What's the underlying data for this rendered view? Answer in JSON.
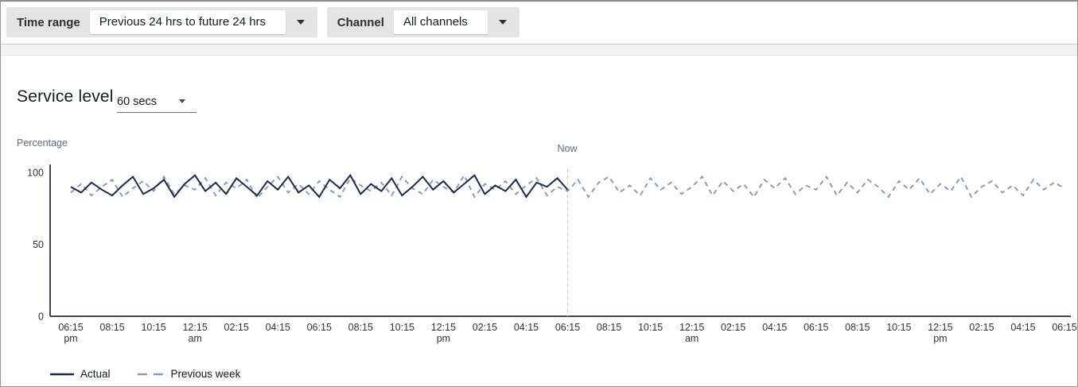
{
  "filters": {
    "time_range": {
      "label": "Time range",
      "value": "Previous 24 hrs to future 24 hrs"
    },
    "channel": {
      "label": "Channel",
      "value": "All channels"
    }
  },
  "panel": {
    "title": "Service level",
    "threshold_value": "60 secs",
    "y_axis_title": "Percentage",
    "now_label": "Now"
  },
  "legend": {
    "actual": "Actual",
    "previous": "Previous week"
  },
  "chart_data": {
    "type": "line",
    "title": "Service level",
    "ylabel": "Percentage",
    "ylim": [
      0,
      100
    ],
    "y_ticks": [
      0,
      50,
      100
    ],
    "grid": false,
    "legend_position": "bottom-left",
    "x_tick_labels": [
      {
        "label": "06:15",
        "sub": "pm"
      },
      {
        "label": "08:15"
      },
      {
        "label": "10:15"
      },
      {
        "label": "12:15",
        "sub": "am"
      },
      {
        "label": "02:15"
      },
      {
        "label": "04:15"
      },
      {
        "label": "06:15"
      },
      {
        "label": "08:15"
      },
      {
        "label": "10:15"
      },
      {
        "label": "12:15",
        "sub": "pm"
      },
      {
        "label": "02:15"
      },
      {
        "label": "04:15"
      },
      {
        "label": "06:15"
      },
      {
        "label": "08:15"
      },
      {
        "label": "10:15"
      },
      {
        "label": "12:15",
        "sub": "am"
      },
      {
        "label": "02:15"
      },
      {
        "label": "04:15"
      },
      {
        "label": "06:15"
      },
      {
        "label": "08:15"
      },
      {
        "label": "10:15"
      },
      {
        "label": "12:15",
        "sub": "pm"
      },
      {
        "label": "02:15"
      },
      {
        "label": "04:15"
      },
      {
        "label": "06:15"
      }
    ],
    "now_tick_index": 12,
    "now_line_color": "#c7c7cd",
    "axis_color": "#424650",
    "series": [
      {
        "name": "Actual",
        "style": "solid",
        "color": "#1b2a4e",
        "tick_span": [
          0,
          12
        ],
        "values": [
          90,
          86,
          93,
          88,
          84,
          91,
          97,
          85,
          89,
          95,
          83,
          92,
          98,
          87,
          93,
          85,
          96,
          90,
          84,
          94,
          88,
          97,
          86,
          91,
          83,
          95,
          89,
          98,
          85,
          92,
          87,
          96,
          84,
          90,
          97,
          88,
          94,
          86,
          92,
          98,
          85,
          91,
          87,
          95,
          83,
          93,
          90,
          96,
          88
        ]
      },
      {
        "name": "Previous week",
        "style": "dashed",
        "color": "#8e9cb3",
        "tick_span": [
          0,
          24
        ],
        "values": [
          86,
          92,
          84,
          90,
          95,
          83,
          89,
          94,
          87,
          97,
          85,
          91,
          88,
          96,
          84,
          93,
          89,
          95,
          82,
          90,
          97,
          86,
          92,
          85,
          94,
          88,
          83,
          96,
          91,
          87,
          93,
          84,
          97,
          89,
          85,
          95,
          90,
          86,
          98,
          83,
          92,
          88,
          94,
          85,
          91,
          96,
          84,
          90,
          87,
          95,
          83,
          93,
          97,
          86,
          91,
          84,
          96,
          88,
          93,
          85,
          90,
          97,
          84,
          94,
          87,
          92,
          83,
          95,
          89,
          96,
          85,
          91,
          88,
          97,
          84,
          93,
          86,
          95,
          90,
          83,
          94,
          88,
          96,
          85,
          92,
          87,
          97,
          83,
          90,
          94,
          86,
          91,
          84,
          95,
          88,
          93,
          89
        ]
      }
    ]
  }
}
